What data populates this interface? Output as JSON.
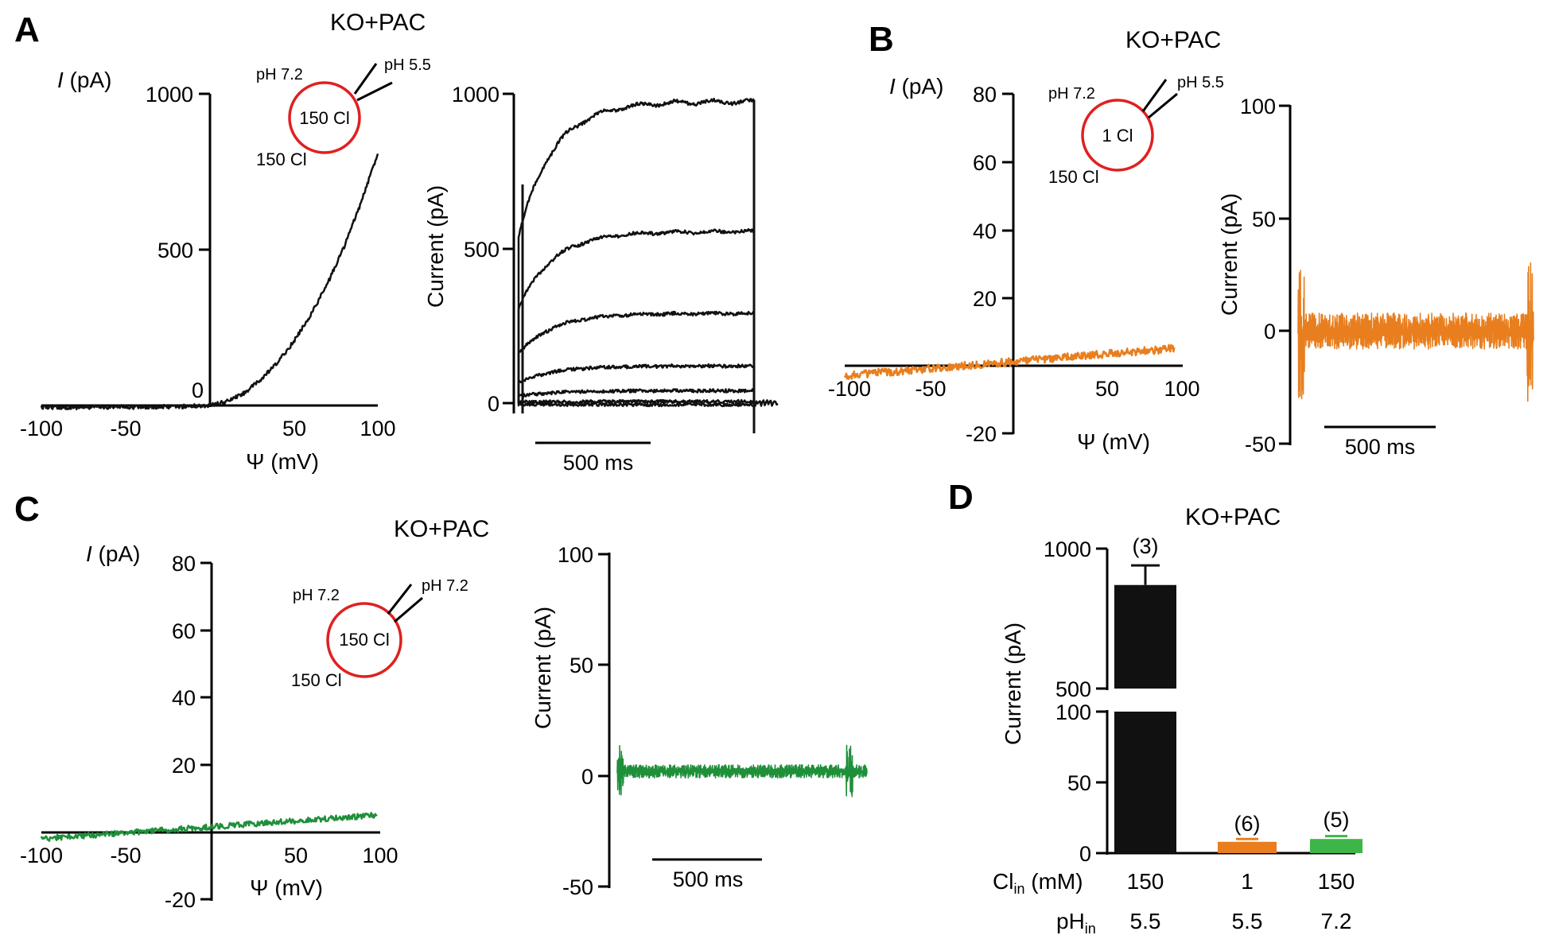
{
  "colors": {
    "black": "#111111",
    "orange": "#e87e1e",
    "green": "#1f8f3a",
    "light_green": "#3db548",
    "red_circle": "#e02020",
    "bar_black": "#111111",
    "bar_orange": "#e87e1e",
    "bar_green": "#3db548"
  },
  "chart_data": [
    {
      "id": "A-iv",
      "panel": "A",
      "type": "line",
      "title": "KO+PAC",
      "ylabel_italic": "I",
      "ylabel_rest": " (pA)",
      "xlabel": "Ψ (mV)",
      "xlim": [
        -100,
        100
      ],
      "ylim": [
        0,
        1000
      ],
      "xticks": [
        "-100",
        "-50",
        "50",
        "100"
      ],
      "yticks": [
        "500",
        "1000"
      ],
      "origin_label": "0",
      "inset": {
        "outside_ph": "pH 7.2",
        "pipette_ph": "pH 5.5",
        "inside": "150 Cl",
        "outside": "150 Cl"
      },
      "series": [
        {
          "name": "I-V",
          "color": "black",
          "x": [
            -100,
            -80,
            -60,
            -40,
            -20,
            0,
            10,
            20,
            30,
            40,
            50,
            60,
            70,
            80,
            90,
            100
          ],
          "y": [
            -5,
            -6,
            -5,
            -5,
            -4,
            0,
            12,
            38,
            80,
            135,
            205,
            290,
            390,
            510,
            650,
            810
          ]
        }
      ]
    },
    {
      "id": "A-traces",
      "panel": "A",
      "type": "line",
      "ylabel": "Current (pA)",
      "ylim": [
        0,
        1000
      ],
      "yticks": [
        "0",
        "500",
        "1000"
      ],
      "scalebar": "500 ms",
      "series": [
        {
          "name": "step 1",
          "steady": 975
        },
        {
          "name": "step 2",
          "steady": 555
        },
        {
          "name": "step 3",
          "steady": 290
        },
        {
          "name": "step 4",
          "steady": 120
        },
        {
          "name": "step 5",
          "steady": 40
        },
        {
          "name": "step 6",
          "steady": 5
        },
        {
          "name": "step 7",
          "steady": -5
        }
      ]
    },
    {
      "id": "B-iv",
      "panel": "B",
      "type": "line",
      "title": "KO+PAC",
      "ylabel_italic": "I",
      "ylabel_rest": " (pA)",
      "xlabel": "Ψ (mV)",
      "xlim": [
        -100,
        100
      ],
      "ylim": [
        -20,
        80
      ],
      "xticks": [
        "-100",
        "-50",
        "50",
        "100"
      ],
      "yticks": [
        "-20",
        "20",
        "40",
        "60",
        "80"
      ],
      "inset": {
        "outside_ph": "pH 7.2",
        "pipette_ph": "pH 5.5",
        "inside": "1 Cl",
        "outside": "150 Cl"
      },
      "series": [
        {
          "name": "I-V",
          "color": "orange",
          "x": [
            -100,
            95
          ],
          "y": [
            -3,
            5
          ]
        }
      ]
    },
    {
      "id": "B-traces",
      "panel": "B",
      "type": "line",
      "ylabel": "Current (pA)",
      "ylim": [
        -50,
        100
      ],
      "yticks": [
        "-50",
        "0",
        "50",
        "100"
      ],
      "scalebar": "500 ms",
      "series": [
        {
          "name": "traces",
          "color": "orange",
          "level": 0,
          "noise": 8
        }
      ]
    },
    {
      "id": "C-iv",
      "panel": "C",
      "type": "line",
      "title": "KO+PAC",
      "ylabel_italic": "I",
      "ylabel_rest": " (pA)",
      "xlabel": "Ψ (mV)",
      "xlim": [
        -100,
        100
      ],
      "ylim": [
        -20,
        80
      ],
      "xticks": [
        "-100",
        "-50",
        "50",
        "100"
      ],
      "yticks": [
        "-20",
        "20",
        "40",
        "60",
        "80"
      ],
      "inset": {
        "outside_ph": "pH 7.2",
        "pipette_ph": "pH 7.2",
        "inside": "150 Cl",
        "outside": "150 Cl"
      },
      "series": [
        {
          "name": "I-V",
          "color": "green",
          "x": [
            -100,
            98
          ],
          "y": [
            -2,
            5
          ]
        }
      ]
    },
    {
      "id": "C-traces",
      "panel": "C",
      "type": "line",
      "ylabel": "Current (pA)",
      "ylim": [
        -50,
        100
      ],
      "yticks": [
        "-50",
        "0",
        "50",
        "100"
      ],
      "scalebar": "500 ms",
      "series": [
        {
          "name": "traces",
          "color": "green",
          "level": 2,
          "noise": 3
        }
      ]
    },
    {
      "id": "D-bar",
      "panel": "D",
      "type": "bar",
      "title": "KO+PAC",
      "ylabel": "Current (pA)",
      "yticks_lower": [
        "0",
        "50",
        "100"
      ],
      "yticks_upper": [
        "500",
        "1000"
      ],
      "axis_break": [
        100,
        500
      ],
      "categories": [
        "150 / 5.5",
        "1 / 5.5",
        "150 / 7.2"
      ],
      "values": [
        870,
        8,
        10
      ],
      "errors": [
        70,
        2,
        2
      ],
      "n_labels": [
        "(3)",
        "(6)",
        "(5)"
      ],
      "colors": [
        "bar_black",
        "bar_orange",
        "bar_green"
      ],
      "row1_label_main": "Cl",
      "row1_label_sub": "in",
      "row1_label_unit": " (mM)",
      "row1_values": [
        "150",
        "1",
        "150"
      ],
      "row2_label_main": "pH",
      "row2_label_sub": "in",
      "row2_values": [
        "5.5",
        "5.5",
        "7.2"
      ]
    }
  ],
  "panel_letters": [
    "A",
    "B",
    "C",
    "D"
  ]
}
